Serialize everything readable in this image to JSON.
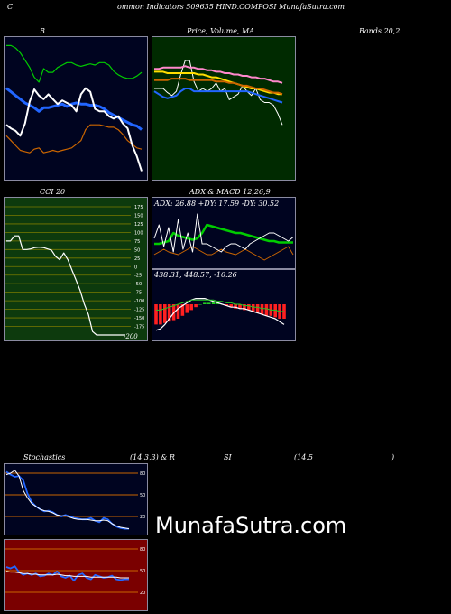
{
  "header": {
    "left": "C",
    "title": "ommon  Indicators 509635 HIND.COMPOSI MunafaSutra.com"
  },
  "colors": {
    "bg": "#000000",
    "panel_dark": "#000420",
    "panel_green": "#002a00",
    "cci_bg": "#0d3a0d",
    "rsi_bg": "#7a0000",
    "border": "#8a8aa0",
    "white": "#ffffff",
    "green": "#00cc00",
    "blue": "#2266ff",
    "orange": "#cc6600",
    "grid_green": "#7a7a00",
    "grid_orange": "#c86400",
    "macd_red": "#ff2020",
    "macd_green": "#22cc22",
    "pink": "#ff88cc",
    "yellow": "#ffdd00"
  },
  "labels": {
    "bb_title": "B",
    "price_title": "Price,  Volume, MA",
    "bands_title": "Bands 20,2",
    "cci_title": "CCI 20",
    "adx_title": "ADX  & MACD 12,26,9",
    "adx_values": "ADX: 26.88  +DY: 17.59 -DY: 30.52",
    "macd_values": "438.31,  448.57,  -10.26",
    "stoch_title": "Stochastics",
    "stoch_params": "(14,3,3) & R",
    "rsi_si": "SI",
    "rsi_params": "(14,5",
    "rsi_close": ")",
    "cci_last": "-200",
    "watermark": "MunafaSutra.com"
  },
  "chart_data": [
    {
      "name": "bollinger_bands",
      "type": "line",
      "x": [
        0,
        1,
        2,
        3,
        4,
        5,
        6,
        7,
        8,
        9,
        10,
        11,
        12,
        13,
        14,
        15,
        16,
        17,
        18,
        19,
        20,
        21,
        22,
        23,
        24,
        25,
        26,
        27,
        28,
        29
      ],
      "ylim": [
        0,
        100
      ],
      "series": [
        {
          "role": "upper",
          "color": "#00cc00",
          "values": [
            96,
            96,
            94,
            90,
            84,
            78,
            70,
            66,
            77,
            74,
            74,
            78,
            80,
            82,
            82,
            80,
            79,
            80,
            81,
            80,
            82,
            82,
            80,
            75,
            72,
            70,
            69,
            69,
            71,
            74
          ]
        },
        {
          "role": "middle",
          "color": "#2266ff",
          "values": [
            61,
            58,
            55,
            52,
            49,
            47,
            45,
            42,
            45,
            45,
            46,
            47,
            48,
            46,
            48,
            49,
            48,
            48,
            47,
            47,
            46,
            44,
            41,
            39,
            37,
            35,
            33,
            31,
            30,
            27
          ]
        },
        {
          "role": "lower",
          "color": "#cc6600",
          "values": [
            22,
            18,
            14,
            10,
            9,
            8,
            11,
            12,
            8,
            9,
            10,
            9,
            10,
            11,
            12,
            15,
            18,
            27,
            31,
            31,
            31,
            30,
            29,
            29,
            27,
            23,
            18,
            15,
            12,
            11
          ]
        },
        {
          "role": "price",
          "color": "#ffffff",
          "values": [
            31,
            28,
            26,
            22,
            32,
            50,
            60,
            55,
            52,
            56,
            52,
            48,
            51,
            49,
            47,
            42,
            56,
            61,
            58,
            44,
            42,
            42,
            38,
            36,
            38,
            32,
            28,
            14,
            5,
            -7
          ]
        }
      ]
    },
    {
      "name": "price_volume_ma",
      "type": "line",
      "x": [
        0,
        1,
        2,
        3,
        4,
        5,
        6,
        7,
        8,
        9,
        10,
        11,
        12,
        13,
        14,
        15,
        16,
        17,
        18,
        19,
        20,
        21,
        22,
        23,
        24,
        25,
        26,
        27,
        28,
        29
      ],
      "series": [
        {
          "role": "price",
          "color": "#ffffff",
          "values": [
            60,
            60,
            60,
            57,
            55,
            58,
            70,
            80,
            80,
            65,
            58,
            60,
            58,
            60,
            64,
            58,
            60,
            52,
            54,
            56,
            62,
            58,
            55,
            60,
            52,
            50,
            50,
            48,
            42,
            34
          ]
        },
        {
          "role": "ma_pink",
          "color": "#ff88cc",
          "values": [
            74,
            74,
            75,
            75,
            75,
            75,
            75,
            76,
            75,
            75,
            74,
            74,
            73,
            73,
            72,
            72,
            71,
            71,
            70,
            70,
            69,
            69,
            68,
            68,
            67,
            67,
            66,
            65,
            65,
            64
          ]
        },
        {
          "role": "ma_yellow",
          "color": "#ffdd00",
          "values": [
            72,
            72,
            72,
            71,
            71,
            71,
            71,
            71,
            71,
            71,
            70,
            70,
            69,
            68,
            68,
            67,
            66,
            65,
            64,
            63,
            62,
            61,
            60,
            60,
            59,
            58,
            57,
            57,
            56,
            56
          ]
        },
        {
          "role": "ma_orange",
          "color": "#cc6600",
          "values": [
            66,
            66,
            66,
            66,
            67,
            67,
            67,
            67,
            66,
            66,
            66,
            66,
            66,
            66,
            65,
            65,
            65,
            64,
            64,
            63,
            62,
            62,
            61,
            60,
            60,
            59,
            58,
            57,
            57,
            56
          ]
        },
        {
          "role": "ma_blue",
          "color": "#2266ff",
          "values": [
            58,
            56,
            54,
            53,
            54,
            55,
            58,
            60,
            60,
            58,
            58,
            58,
            58,
            58,
            58,
            58,
            58,
            58,
            58,
            58,
            58,
            58,
            57,
            56,
            55,
            54,
            53,
            52,
            51,
            50
          ]
        }
      ]
    },
    {
      "name": "cci",
      "type": "line",
      "ylim": [
        -200,
        175
      ],
      "ticks": [
        175,
        150,
        125,
        100,
        75,
        50,
        25,
        0,
        -25,
        -50,
        -75,
        -100,
        -125,
        -150,
        -175
      ],
      "x": [
        0,
        1,
        2,
        3,
        4,
        5,
        6,
        7,
        8,
        9,
        10,
        11,
        12,
        13,
        14,
        15,
        16,
        17,
        18,
        19,
        20,
        21,
        22,
        23,
        24,
        25,
        26,
        27,
        28,
        29
      ],
      "values": [
        75,
        75,
        90,
        90,
        50,
        50,
        52,
        56,
        57,
        56,
        52,
        48,
        30,
        20,
        40,
        20,
        -10,
        -40,
        -70,
        -110,
        -140,
        -190,
        -205,
        -205,
        -205,
        -205,
        -205,
        -205,
        -205,
        -205
      ]
    },
    {
      "name": "adx",
      "type": "line",
      "x": [
        0,
        1,
        2,
        3,
        4,
        5,
        6,
        7,
        8,
        9,
        10,
        11,
        12,
        13,
        14,
        15,
        16,
        17,
        18,
        19,
        20,
        21,
        22,
        23,
        24,
        25,
        26,
        27,
        28,
        29
      ],
      "series": [
        {
          "role": "adx",
          "color": "#00cc00",
          "values": [
            26,
            26,
            27,
            28,
            34,
            32,
            31,
            30,
            29,
            30,
            34,
            40,
            39,
            38,
            37,
            36,
            35,
            34,
            34,
            33,
            32,
            31,
            30,
            29,
            28,
            28,
            27,
            27,
            27,
            27
          ]
        },
        {
          "role": "plus_di",
          "color": "#cc6600",
          "values": [
            18,
            20,
            22,
            20,
            19,
            18,
            20,
            22,
            24,
            22,
            20,
            18,
            18,
            20,
            22,
            20,
            19,
            18,
            20,
            22,
            20,
            18,
            16,
            14,
            16,
            18,
            20,
            22,
            24,
            18
          ]
        },
        {
          "role": "minus_di",
          "color": "#ffffff",
          "values": [
            30,
            40,
            24,
            38,
            20,
            44,
            22,
            34,
            20,
            48,
            26,
            26,
            24,
            22,
            20,
            24,
            26,
            26,
            24,
            22,
            26,
            28,
            30,
            32,
            34,
            34,
            32,
            30,
            28,
            31
          ]
        }
      ]
    },
    {
      "name": "macd",
      "type": "bar",
      "x": [
        0,
        1,
        2,
        3,
        4,
        5,
        6,
        7,
        8,
        9,
        10,
        11,
        12,
        13,
        14,
        15,
        16,
        17,
        18,
        19,
        20,
        21,
        22,
        23,
        24,
        25,
        26,
        27,
        28,
        29
      ],
      "histogram": [
        -14,
        -14,
        -13,
        -12,
        -11,
        -10,
        -8,
        -6,
        -4,
        -2,
        0,
        1,
        1,
        2,
        1,
        0,
        -1,
        -2,
        -3,
        -3,
        -4,
        -4,
        -5,
        -6,
        -7,
        -8,
        -8,
        -9,
        -10,
        -10
      ],
      "series": [
        {
          "role": "macd",
          "color": "#ffffff",
          "values": [
            -18,
            -17,
            -14,
            -10,
            -6,
            -3,
            -1,
            1,
            3,
            4,
            4,
            4,
            3,
            2,
            1,
            0,
            -1,
            -2,
            -2,
            -3,
            -3,
            -4,
            -5,
            -6,
            -7,
            -8,
            -9,
            -10,
            -12,
            -14
          ]
        },
        {
          "role": "signal",
          "color": "#22cc22",
          "values": [
            -4,
            -4,
            -3,
            -2,
            -1,
            0,
            1,
            2,
            3,
            3,
            3,
            3,
            3,
            3,
            2,
            2,
            1,
            1,
            0,
            0,
            -1,
            -1,
            -2,
            -2,
            -3,
            -3,
            -4,
            -4,
            -5,
            -5
          ]
        }
      ]
    },
    {
      "name": "stochastics",
      "type": "line",
      "ylim": [
        0,
        100
      ],
      "ticks": [
        80,
        50,
        20
      ],
      "x": [
        0,
        1,
        2,
        3,
        4,
        5,
        6,
        7,
        8,
        9,
        10,
        11,
        12,
        13,
        14,
        15,
        16,
        17,
        18,
        19,
        20,
        21,
        22,
        23,
        24,
        25,
        26,
        27,
        28,
        29
      ],
      "series": [
        {
          "role": "k",
          "color": "#2266ff",
          "values": [
            82,
            78,
            75,
            76,
            70,
            52,
            40,
            34,
            30,
            27,
            28,
            26,
            22,
            20,
            22,
            20,
            18,
            17,
            16,
            16,
            18,
            14,
            12,
            18,
            16,
            10,
            6,
            4,
            3,
            3
          ]
        },
        {
          "role": "d",
          "color": "#ffffff",
          "values": [
            78,
            80,
            84,
            76,
            56,
            46,
            38,
            34,
            30,
            28,
            27,
            25,
            22,
            21,
            21,
            19,
            17,
            16,
            16,
            16,
            15,
            14,
            14,
            15,
            14,
            10,
            7,
            5,
            4,
            3
          ]
        }
      ]
    },
    {
      "name": "rsi",
      "type": "line",
      "ylim": [
        0,
        100
      ],
      "ticks": [
        80,
        50,
        20
      ],
      "x": [
        0,
        1,
        2,
        3,
        4,
        5,
        6,
        7,
        8,
        9,
        10,
        11,
        12,
        13,
        14,
        15,
        16,
        17,
        18,
        19,
        20,
        21,
        22,
        23,
        24,
        25,
        26,
        27,
        28,
        29
      ],
      "series": [
        {
          "role": "rsi",
          "color": "#2266ff",
          "values": [
            55,
            53,
            56,
            48,
            44,
            46,
            44,
            46,
            42,
            43,
            46,
            44,
            49,
            42,
            40,
            43,
            36,
            44,
            46,
            40,
            38,
            44,
            42,
            40,
            41,
            43,
            38,
            37,
            38,
            38
          ]
        },
        {
          "role": "avg",
          "color": "#ffffff",
          "values": [
            49,
            48,
            48,
            47,
            46,
            46,
            45,
            45,
            44,
            44,
            44,
            44,
            45,
            44,
            43,
            43,
            42,
            42,
            42,
            42,
            41,
            41,
            41,
            41,
            41,
            41,
            41,
            40,
            40,
            40
          ]
        }
      ]
    }
  ]
}
